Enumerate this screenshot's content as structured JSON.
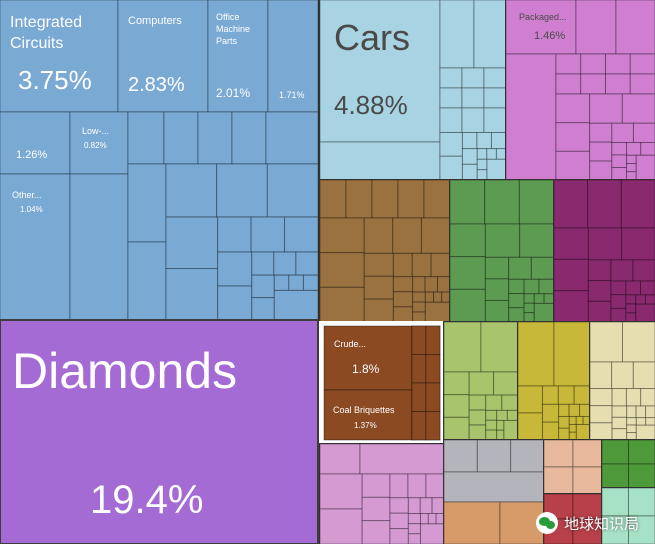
{
  "chart_data": {
    "type": "treemap",
    "unit": "%",
    "cells": [
      {
        "label": "Diamonds",
        "value": 19.4,
        "color": "#a56bd4"
      },
      {
        "label": "Cars",
        "value": 4.88,
        "color": "#a7d3e2"
      },
      {
        "label": "Integrated Circuits",
        "value": 3.75,
        "color": "#7aa9d4"
      },
      {
        "label": "Computers",
        "value": 2.83,
        "color": "#7aa9d4"
      },
      {
        "label": "Office Machine Parts",
        "value": 2.01,
        "color": "#7aa9d4"
      },
      {
        "label": "Crude...",
        "value": 1.8,
        "color": "#8b4a22"
      },
      {
        "label": "Packaged...",
        "value": 1.46,
        "color": "#d07fd0"
      },
      {
        "label": "Coal Briquettes",
        "value": 1.37,
        "color": "#8b4a22"
      },
      {
        "label": "",
        "value": 1.26,
        "color": "#7aa9d4"
      },
      {
        "label": "Other...",
        "value": 1.04,
        "color": "#7aa9d4"
      },
      {
        "label": "Low-...",
        "value": 0.82,
        "color": "#7aa9d4"
      },
      {
        "label": "",
        "value": 1.71,
        "color": "#7aa9d4"
      }
    ]
  },
  "watermark": {
    "text": "地球知识局"
  }
}
